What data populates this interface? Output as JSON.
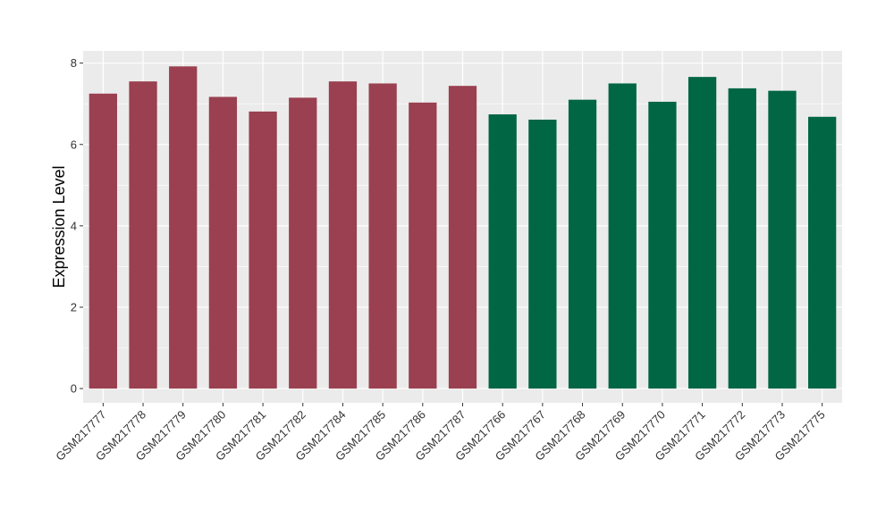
{
  "chart_data": {
    "type": "bar",
    "title": "",
    "xlabel": "",
    "ylabel": "Expression Level",
    "ylim": [
      -0.35,
      8.3
    ],
    "yticks": [
      0,
      2,
      4,
      6,
      8
    ],
    "grid": true,
    "categories": [
      "GSM217777",
      "GSM217778",
      "GSM217779",
      "GSM217780",
      "GSM217781",
      "GSM217782",
      "GSM217784",
      "GSM217785",
      "GSM217786",
      "GSM217787",
      "GSM217766",
      "GSM217767",
      "GSM217768",
      "GSM217769",
      "GSM217770",
      "GSM217771",
      "GSM217772",
      "GSM217773",
      "GSM217775"
    ],
    "values": [
      7.25,
      7.55,
      7.92,
      7.17,
      6.81,
      7.15,
      7.55,
      7.5,
      7.03,
      7.44,
      6.74,
      6.61,
      7.1,
      7.5,
      7.05,
      7.66,
      7.38,
      7.32,
      6.68
    ],
    "colors": [
      "#9a4050",
      "#9a4050",
      "#9a4050",
      "#9a4050",
      "#9a4050",
      "#9a4050",
      "#9a4050",
      "#9a4050",
      "#9a4050",
      "#9a4050",
      "#006644",
      "#006644",
      "#006644",
      "#006644",
      "#006644",
      "#006644",
      "#006644",
      "#006644",
      "#006644"
    ],
    "panel_background": "#ebebeb",
    "gridline_color": "#ffffff"
  }
}
